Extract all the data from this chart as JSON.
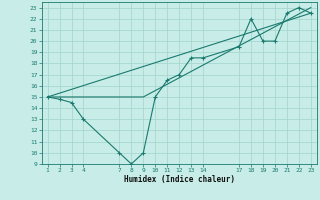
{
  "title": "",
  "xlabel": "Humidex (Indice chaleur)",
  "background_color": "#c8ede8",
  "grid_color": "#a0d4cc",
  "line_color": "#1a7a6e",
  "xlim": [
    0.5,
    23.5
  ],
  "ylim": [
    9,
    23.5
  ],
  "yticks": [
    9,
    10,
    11,
    12,
    13,
    14,
    15,
    16,
    17,
    18,
    19,
    20,
    21,
    22,
    23
  ],
  "xticks": [
    1,
    2,
    3,
    4,
    7,
    8,
    9,
    10,
    11,
    12,
    13,
    14,
    17,
    18,
    19,
    20,
    21,
    22,
    23
  ],
  "series_main": {
    "x": [
      1,
      2,
      3,
      4,
      7,
      8,
      9,
      10,
      11,
      12,
      13,
      14,
      17,
      18,
      19,
      20,
      21,
      22,
      23
    ],
    "y": [
      15,
      14.8,
      14.5,
      13.0,
      10.0,
      9.0,
      10.0,
      15.0,
      16.5,
      17.0,
      18.5,
      18.5,
      19.5,
      22.0,
      20.0,
      20.0,
      22.5,
      23.0,
      22.5
    ]
  },
  "series_trend1": {
    "x": [
      1,
      23
    ],
    "y": [
      15,
      22.5
    ]
  },
  "series_trend2": {
    "x": [
      1,
      9,
      23
    ],
    "y": [
      15,
      15,
      23
    ]
  }
}
